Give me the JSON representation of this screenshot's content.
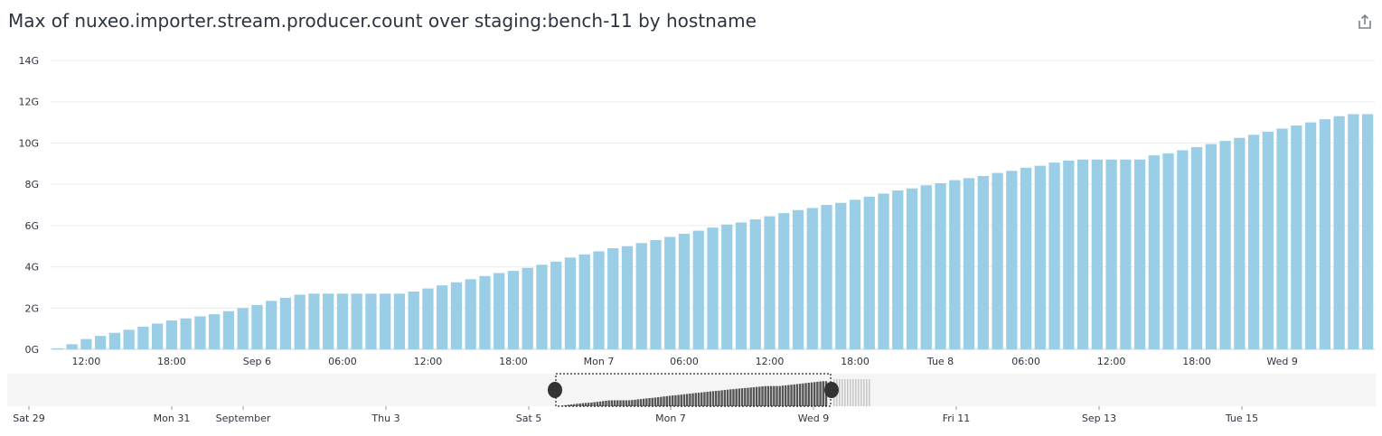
{
  "title": "Max of nuxeo.importer.stream.producer.count over staging:bench-11 by hostname",
  "share_icon": "share-export-icon",
  "colors": {
    "bar": "#9acee7",
    "grid": "#eaecee",
    "text": "#2c3440",
    "nav_bg": "#f5f5f5",
    "nav_bar_dark": "#555555",
    "nav_bar_light": "#c8c8c8",
    "handle": "#333333"
  },
  "chart_data": {
    "type": "bar",
    "title": "Max of nuxeo.importer.stream.producer.count over staging:bench-11 by hostname",
    "y_ticks": [
      "0G",
      "2G",
      "4G",
      "6G",
      "8G",
      "10G",
      "12G",
      "14G"
    ],
    "ylim": [
      0,
      14
    ],
    "y_unit": "G",
    "x_tick_labels": [
      "12:00",
      "18:00",
      "Sep 6",
      "06:00",
      "12:00",
      "18:00",
      "Mon 7",
      "06:00",
      "12:00",
      "18:00",
      "Tue 8",
      "06:00",
      "12:00",
      "18:00",
      "Wed 9"
    ],
    "x_tick_index": [
      2,
      8,
      14,
      20,
      26,
      32,
      38,
      44,
      50,
      56,
      62,
      68,
      74,
      80,
      86
    ],
    "values": [
      0.05,
      0.25,
      0.5,
      0.65,
      0.8,
      0.95,
      1.1,
      1.25,
      1.4,
      1.5,
      1.6,
      1.7,
      1.85,
      2.0,
      2.15,
      2.35,
      2.5,
      2.65,
      2.7,
      2.7,
      2.7,
      2.7,
      2.7,
      2.7,
      2.7,
      2.8,
      2.95,
      3.1,
      3.25,
      3.4,
      3.55,
      3.7,
      3.8,
      3.95,
      4.1,
      4.25,
      4.45,
      4.6,
      4.75,
      4.9,
      5.0,
      5.15,
      5.3,
      5.45,
      5.6,
      5.75,
      5.9,
      6.05,
      6.15,
      6.3,
      6.45,
      6.6,
      6.75,
      6.85,
      7.0,
      7.1,
      7.25,
      7.4,
      7.55,
      7.7,
      7.8,
      7.95,
      8.05,
      8.2,
      8.3,
      8.4,
      8.55,
      8.65,
      8.8,
      8.9,
      9.05,
      9.15,
      9.2,
      9.2,
      9.2,
      9.2,
      9.2,
      9.4,
      9.5,
      9.65,
      9.8,
      9.95,
      10.1,
      10.25,
      10.4,
      10.55,
      10.7,
      10.85,
      11.0,
      11.15,
      11.3,
      11.4,
      11.4
    ],
    "grid": true,
    "legend": "none"
  },
  "navigator": {
    "labels": [
      "Sat 29",
      "Mon 31",
      "September",
      "Thu 3",
      "Sat 5",
      "Mon 7",
      "Wed 9",
      "Fri 11",
      "Sep 13",
      "Tue 15"
    ]
  }
}
